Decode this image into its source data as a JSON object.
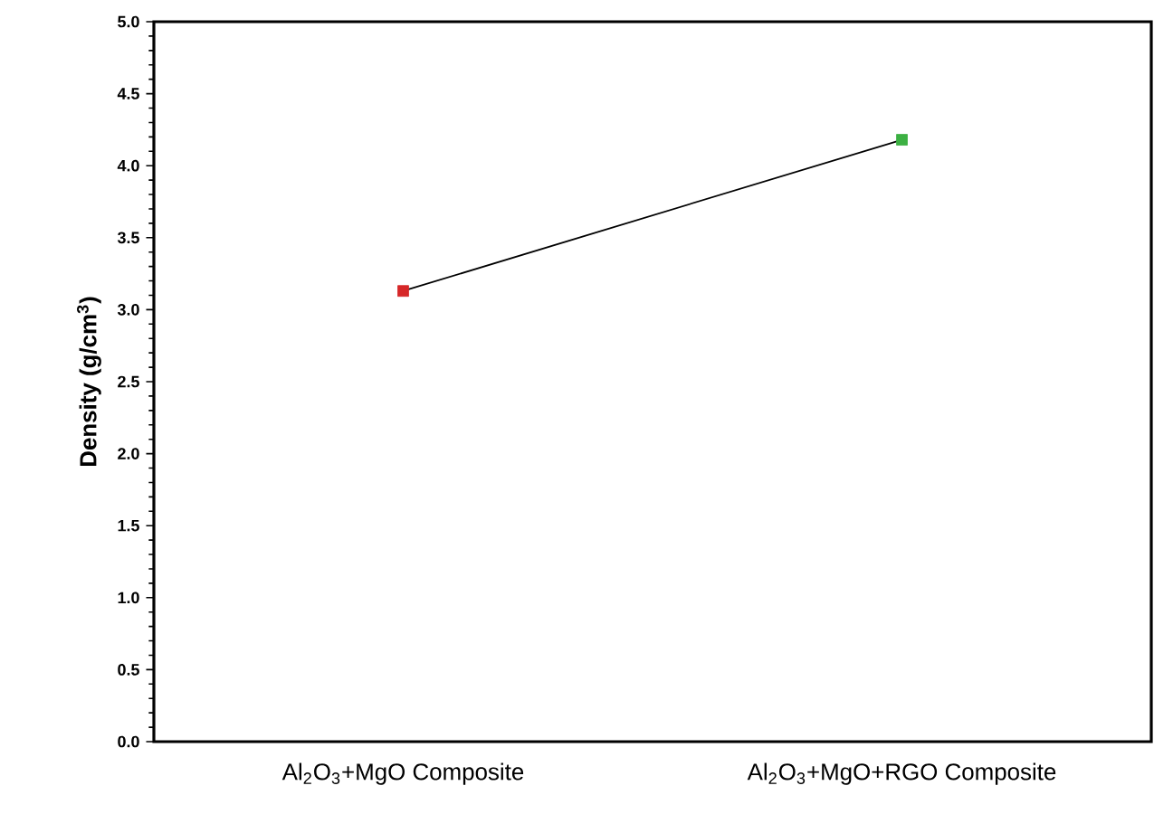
{
  "chart_data": {
    "type": "line",
    "ylabel": "Density (g/cm$^{3}$)",
    "categories": [
      "Al$_{2}$O$_{3}$+MgO Composite",
      "Al$_{2}$O$_{3}$+MgO+RGO Composite"
    ],
    "series": [
      {
        "color": "#000000",
        "colors": [
          "#d62728",
          "#3cb043"
        ],
        "values": [
          3.13,
          4.18
        ]
      }
    ],
    "ylim": [
      0,
      5
    ],
    "yticks": [
      {
        "value": 0,
        "label": "0.0"
      },
      {
        "value": 0.5,
        "label": "0.5"
      },
      {
        "value": 1,
        "label": "1.0"
      },
      {
        "value": 1.5,
        "label": "1.5"
      },
      {
        "value": 2,
        "label": "2.0"
      },
      {
        "value": 2.5,
        "label": "2.5"
      },
      {
        "value": 3,
        "label": "3.0"
      },
      {
        "value": 3.5,
        "label": "3.5"
      },
      {
        "value": 4,
        "label": "4.0"
      },
      {
        "value": 4.5,
        "label": "4.5"
      },
      {
        "value": 5,
        "label": "5.0"
      }
    ],
    "marker": "square",
    "line_style": "solid",
    "grid": false
  }
}
